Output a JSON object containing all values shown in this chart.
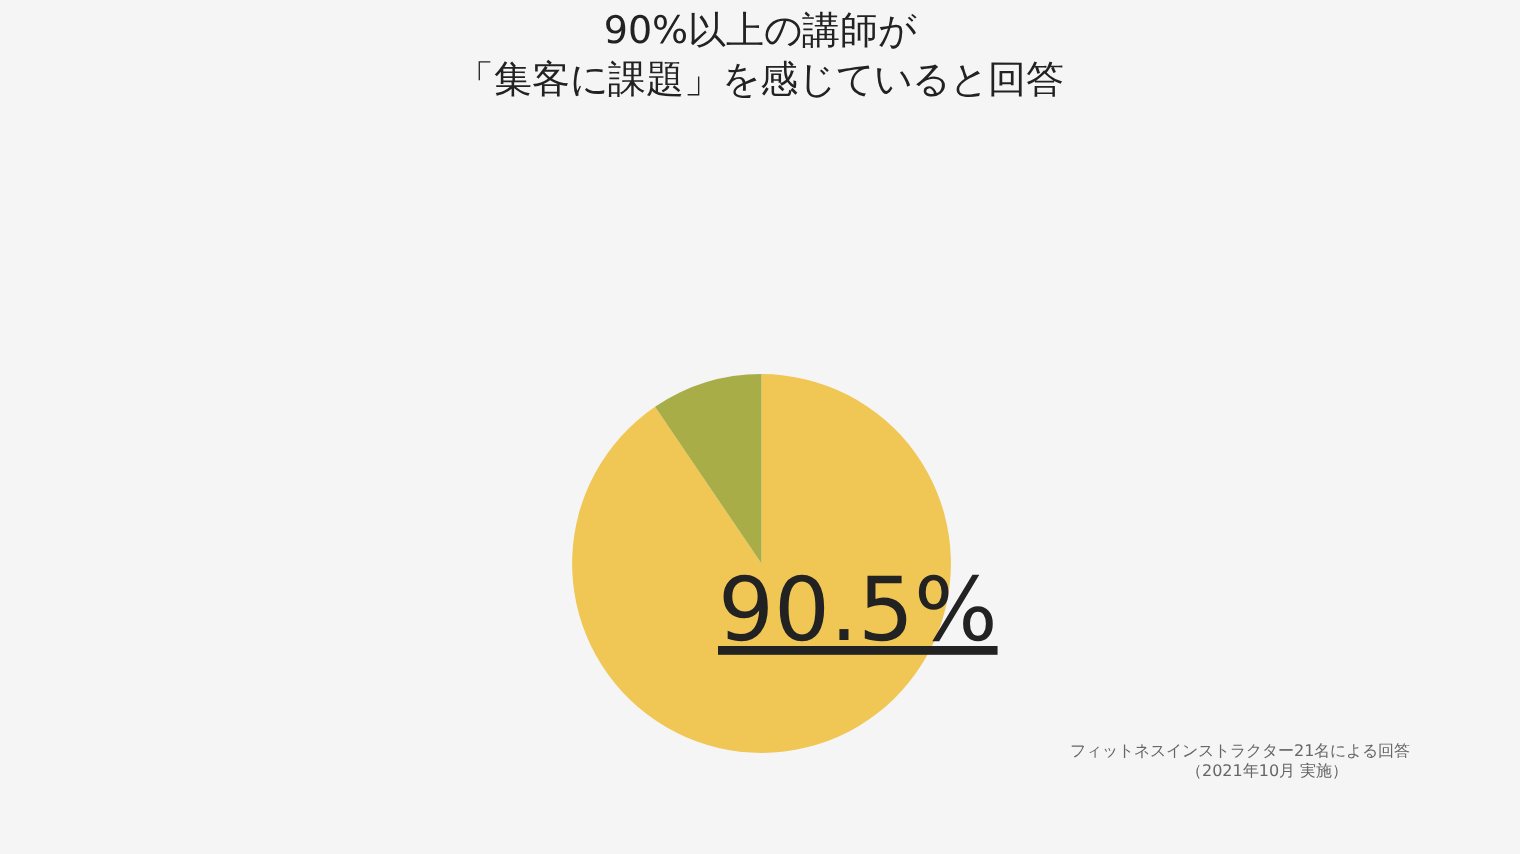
{
  "chart_data": {
    "type": "pie",
    "title": "90%以上の講師が",
    "subtitle": "「集客に課題」を感じていると回答",
    "categories": [
      null,
      null
    ],
    "values": [
      90.5,
      9.5
    ],
    "colors": [
      "#f0c654",
      "#a8ad48"
    ],
    "value_labels": [
      "90.5%",
      null
    ],
    "legend": false,
    "annotations": [
      "フィットネスインストラクター21名による回答",
      "（2021年10月 実施）"
    ]
  }
}
